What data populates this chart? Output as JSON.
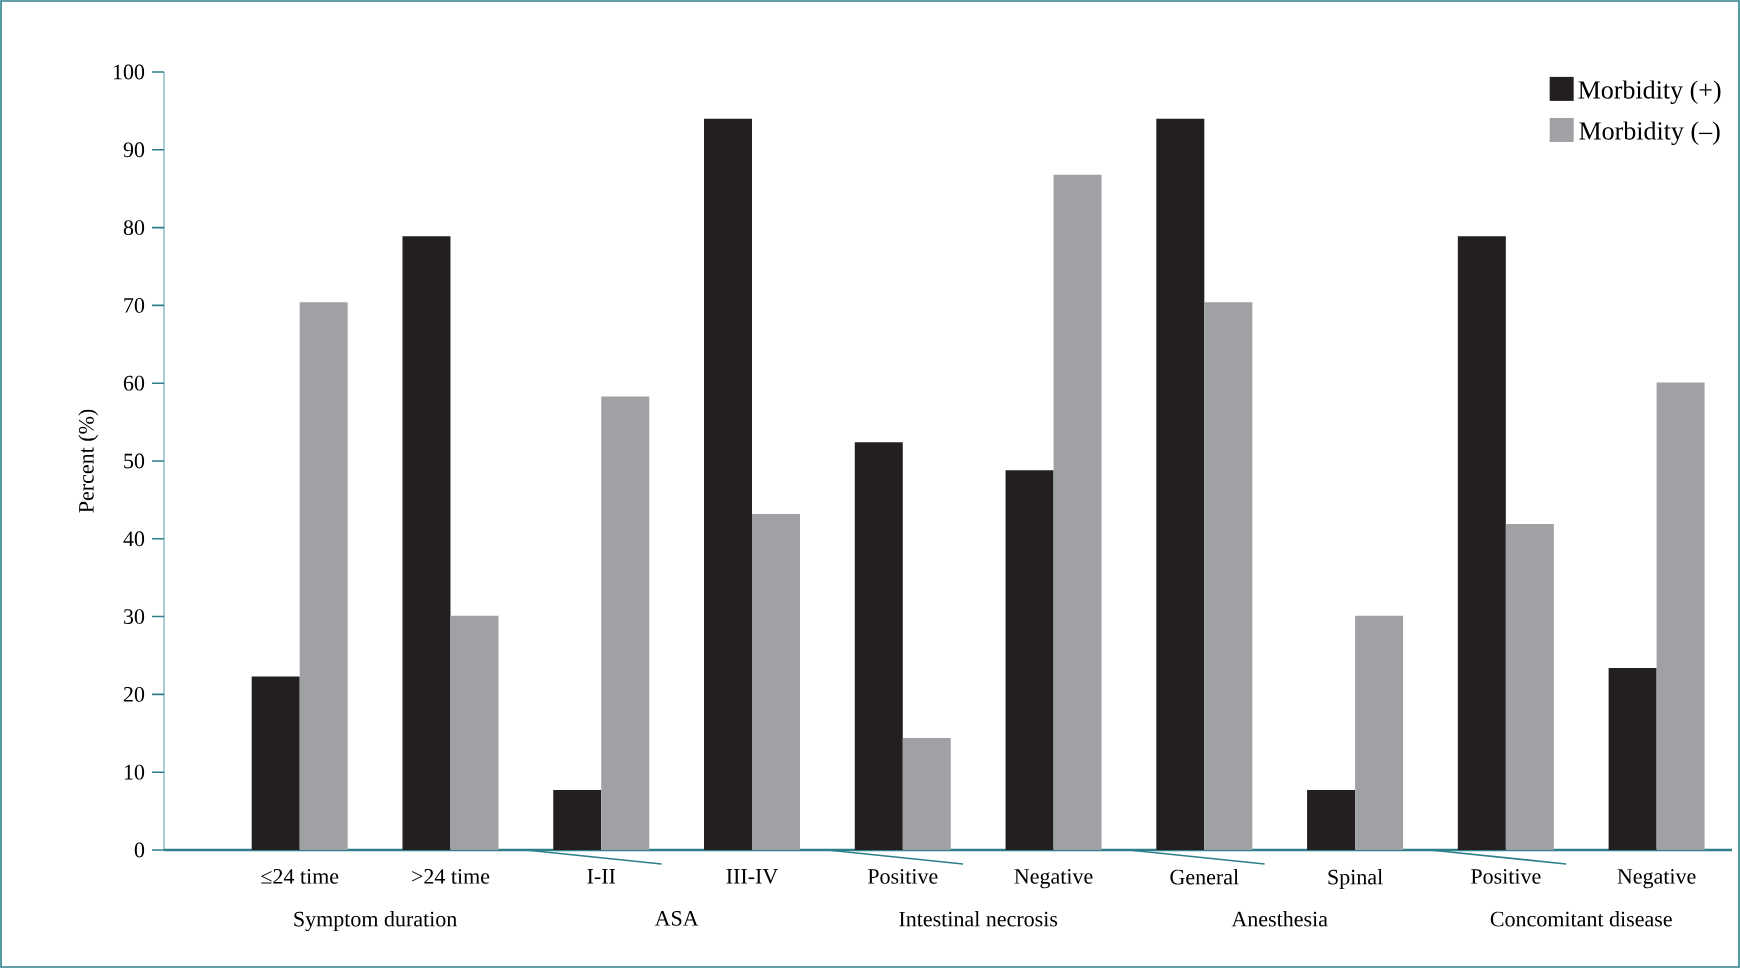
{
  "chart_data": {
    "type": "bar",
    "ylabel": "Percent (%)",
    "categories": [
      "≤24 time",
      ">24 time",
      "I-II",
      "III-IV",
      "Positive",
      "Negative",
      "General",
      "Spinal",
      "Positive",
      "Negative"
    ],
    "series": [
      {
        "name": "Morbidity (+)",
        "color": "#231f20",
        "values": [
          22.3,
          78.9,
          7.7,
          94.0,
          52.4,
          48.8,
          94.0,
          7.7,
          78.9,
          23.4
        ]
      },
      {
        "name": "Morbidity (–)",
        "color": "#a0a1a4",
        "values": [
          70.4,
          30.1,
          58.3,
          43.2,
          14.4,
          86.8,
          70.4,
          30.1,
          41.9,
          60.1
        ]
      }
    ],
    "ylim": [
      0,
      100
    ],
    "yticks": [
      0,
      10,
      20,
      30,
      40,
      50,
      60,
      70,
      80,
      90,
      100
    ],
    "legend": "top right",
    "annotations": [
      "Symptom duration",
      "ASA",
      "Intestinal necrosis",
      "Anesthesia",
      "Concomitant disease"
    ]
  }
}
